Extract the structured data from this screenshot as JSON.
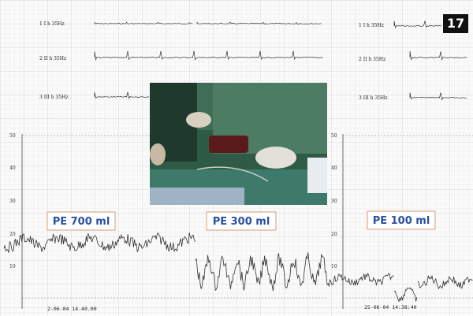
{
  "badge": "17",
  "ecg_left": [
    "1  I h  35Hz",
    "2  II h  35Hz",
    "3  III h  35Hz"
  ],
  "ecg_right": [
    "1  I h  35Hz",
    "2  II h  35Hz",
    "3  III h  35Hz"
  ],
  "pressure_left": {
    "ticks": [
      "50",
      "40",
      "30",
      "20",
      "10"
    ],
    "timestamp": "2-06-04  14.40.00"
  },
  "pressure_right": {
    "ticks": [
      "50",
      "40",
      "30",
      "20",
      "10"
    ],
    "timestamp": "25-06-04  14:38:40"
  },
  "labels": [
    "PE 700 ml",
    "PE 300 ml",
    "PE 100 ml"
  ]
}
